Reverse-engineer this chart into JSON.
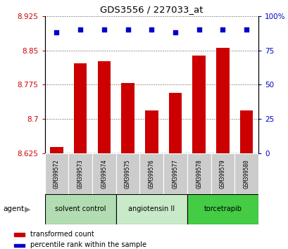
{
  "title": "GDS3556 / 227033_at",
  "categories": [
    "GSM399572",
    "GSM399573",
    "GSM399574",
    "GSM399575",
    "GSM399576",
    "GSM399577",
    "GSM399578",
    "GSM399579",
    "GSM399580"
  ],
  "bar_values": [
    8.638,
    8.822,
    8.826,
    8.778,
    8.718,
    8.757,
    8.838,
    8.855,
    8.718
  ],
  "percentile_values": [
    88,
    90,
    90,
    90,
    90,
    88,
    90,
    90,
    90
  ],
  "ylim": [
    8.625,
    8.925
  ],
  "yticks_left": [
    8.625,
    8.7,
    8.775,
    8.85,
    8.925
  ],
  "yticks_right": [
    0,
    25,
    50,
    75,
    100
  ],
  "bar_color": "#cc0000",
  "dot_color": "#0000cc",
  "groups": [
    {
      "label": "solvent control",
      "indices": [
        0,
        1,
        2
      ],
      "color": "#b2ddb2"
    },
    {
      "label": "angiotensin II",
      "indices": [
        3,
        4,
        5
      ],
      "color": "#c8eac8"
    },
    {
      "label": "torcetrapib",
      "indices": [
        6,
        7,
        8
      ],
      "color": "#44cc44"
    }
  ],
  "legend_items": [
    {
      "label": "transformed count",
      "color": "#cc0000"
    },
    {
      "label": "percentile rank within the sample",
      "color": "#0000cc"
    }
  ],
  "agent_label": "agent",
  "background_color": "#ffffff",
  "plot_bg_color": "#ffffff",
  "tick_label_color_left": "#cc0000",
  "tick_label_color_right": "#0000cc",
  "grid_color": "#555555",
  "figsize": [
    4.1,
    3.54
  ],
  "dpi": 100
}
